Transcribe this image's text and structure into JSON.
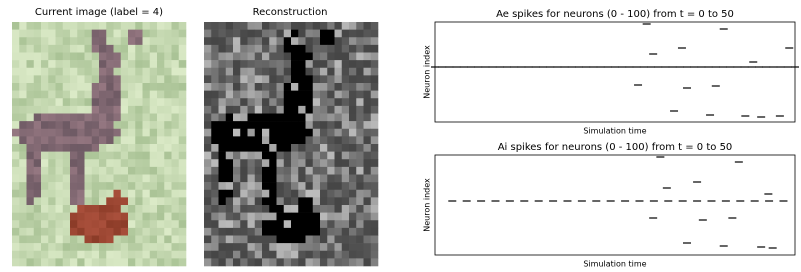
{
  "images": [
    {
      "title": "Current image (label = 4)"
    },
    {
      "title": "Reconstruction"
    }
  ],
  "chart_data": [
    {
      "type": "scatter",
      "title": "Ae spikes for neurons (0 - 100) from t = 0 to 50",
      "x_label": "Simulation time",
      "y_label": "Neuron index",
      "xlim": [
        0,
        50
      ],
      "ylim": [
        0,
        100
      ],
      "color": "#000000",
      "x": [
        29.4,
        40.1,
        34.3,
        30.3,
        49.2,
        44.2,
        28.2,
        35.0,
        39.0,
        33.2,
        38.2,
        43.1,
        45.3,
        47.9,
        0,
        1,
        2,
        3,
        4,
        5,
        6,
        7,
        8,
        9,
        10,
        11,
        12,
        13,
        14,
        15,
        16,
        17,
        18,
        19,
        20,
        21,
        22,
        23,
        24,
        25,
        26,
        27,
        28,
        29,
        30,
        31,
        32,
        33,
        34,
        35,
        36,
        37,
        38,
        39,
        40,
        41,
        42,
        43,
        44,
        45,
        46,
        47,
        48,
        49,
        50
      ],
      "y": [
        98,
        93,
        74,
        68,
        74,
        60,
        37,
        34,
        36,
        11,
        7,
        6,
        5,
        6,
        55,
        55,
        55,
        55,
        55,
        55,
        55,
        55,
        55,
        55,
        55,
        55,
        55,
        55,
        55,
        55,
        55,
        55,
        55,
        55,
        55,
        55,
        55,
        55,
        55,
        55,
        55,
        55,
        55,
        55,
        55,
        55,
        55,
        55,
        55,
        55,
        55,
        55,
        55,
        55,
        55,
        55,
        55,
        55,
        55,
        55,
        55,
        55,
        55,
        55,
        55
      ]
    },
    {
      "type": "scatter",
      "title": "Ai spikes for neurons (0 - 100) from t = 0 to 50",
      "x_label": "Simulation time",
      "y_label": "Neuron index",
      "xlim": [
        0,
        50
      ],
      "ylim": [
        0,
        100
      ],
      "color": "#000000",
      "x": [
        31.3,
        42.2,
        36.4,
        32.2,
        46.3,
        30.3,
        37.2,
        41.3,
        35.0,
        40.1,
        45.3,
        46.9,
        2.4,
        4.4,
        6.4,
        8.4,
        10.4,
        12.4,
        14.4,
        16.4,
        18.4,
        20.4,
        22.4,
        24.4,
        26.4,
        28.4,
        30.4,
        32.4,
        34.4,
        36.4,
        38.4,
        40.4,
        42.4,
        44.4,
        46.4,
        48.4
      ],
      "y": [
        98,
        93,
        73,
        67,
        61,
        37,
        35,
        37,
        12,
        9,
        8,
        7,
        54,
        54,
        54,
        54,
        54,
        54,
        54,
        54,
        54,
        54,
        54,
        54,
        54,
        54,
        54,
        54,
        54,
        54,
        54,
        54,
        54,
        54,
        54,
        54
      ]
    }
  ]
}
